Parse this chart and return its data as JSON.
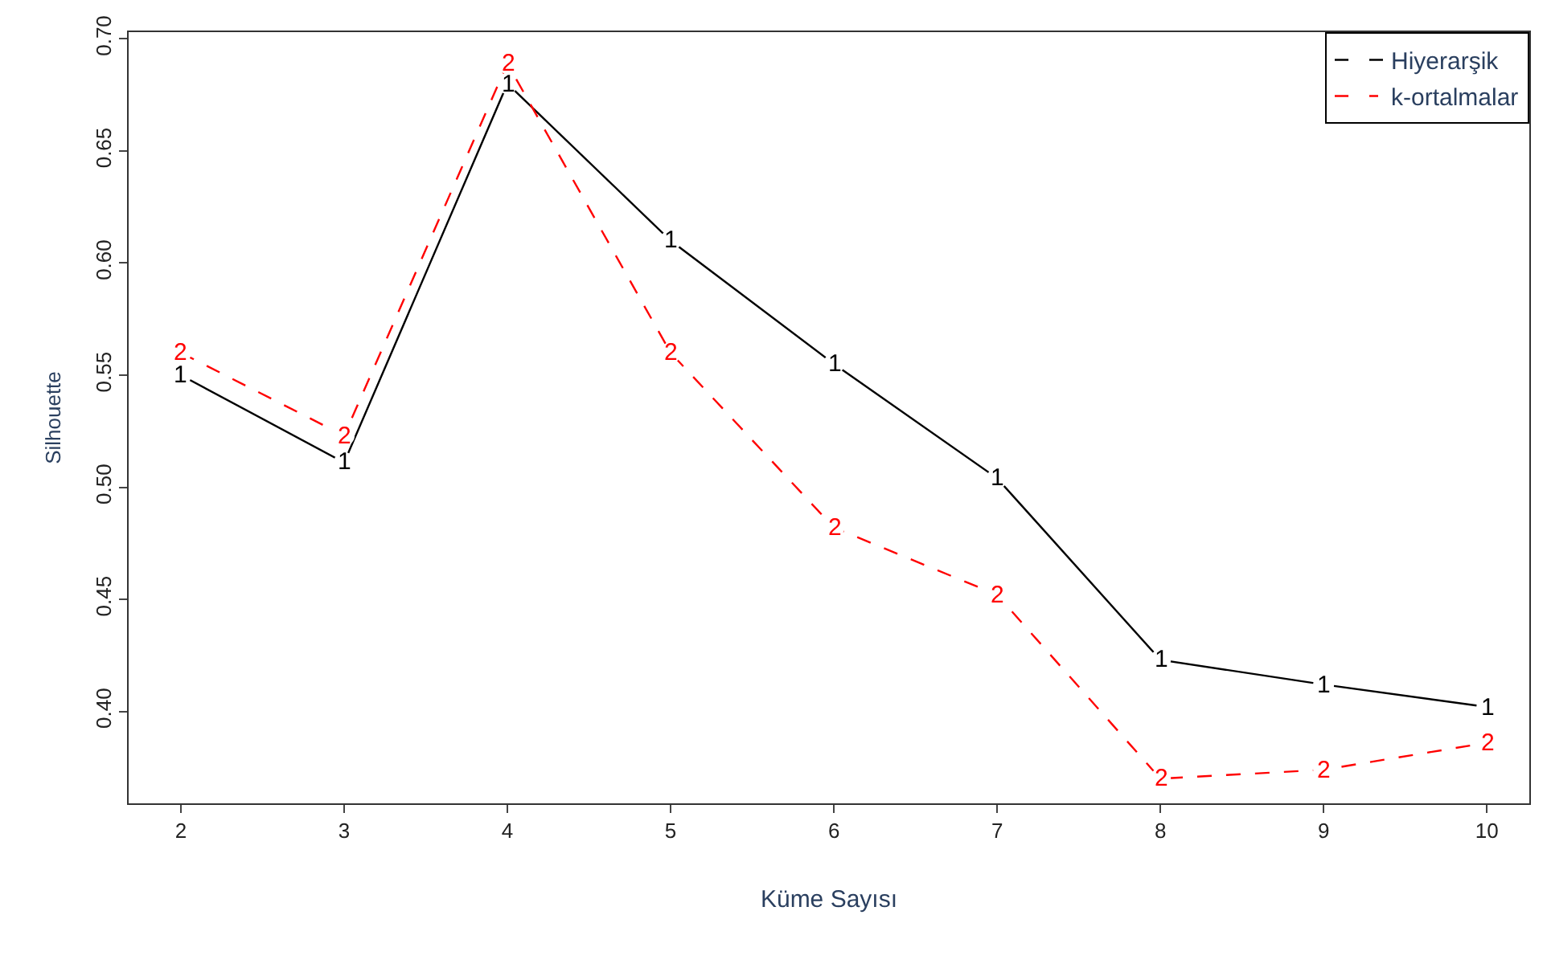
{
  "chart_data": {
    "type": "line",
    "xlabel": "Küme Sayısı",
    "ylabel": "Silhouette",
    "x": [
      2,
      3,
      4,
      5,
      6,
      7,
      8,
      9,
      10
    ],
    "series": [
      {
        "name": "Hiyerarşik",
        "color": "#000000",
        "line_style": "solid",
        "values": [
          0.55,
          0.511,
          0.68,
          0.61,
          0.555,
          0.504,
          0.423,
          0.412,
          0.402
        ]
      },
      {
        "name": "k-ortalmalar",
        "color": "#ff0000",
        "line_style": "dashed",
        "values": [
          0.56,
          0.523,
          0.689,
          0.56,
          0.482,
          0.452,
          0.37,
          0.374,
          0.386
        ]
      }
    ],
    "annotations": [
      {
        "text": "1",
        "x": 2,
        "y": 0.55
      },
      {
        "text": "1",
        "x": 3,
        "y": 0.511
      },
      {
        "text": "1",
        "x": 4,
        "y": 0.68
      },
      {
        "text": "1",
        "x": 5,
        "y": 0.61
      },
      {
        "text": "1",
        "x": 6,
        "y": 0.555
      },
      {
        "text": "1",
        "x": 7,
        "y": 0.504
      },
      {
        "text": "1",
        "x": 8,
        "y": 0.423
      },
      {
        "text": "1",
        "x": 9,
        "y": 0.412
      },
      {
        "text": "1",
        "x": 10,
        "y": 0.402
      },
      {
        "text": "2",
        "x": 2,
        "y": 0.56
      },
      {
        "text": "2",
        "x": 3,
        "y": 0.523
      },
      {
        "text": "2",
        "x": 4,
        "y": 0.689
      },
      {
        "text": "2",
        "x": 5,
        "y": 0.56
      },
      {
        "text": "2",
        "x": 6,
        "y": 0.482
      },
      {
        "text": "2",
        "x": 7,
        "y": 0.452
      },
      {
        "text": "2",
        "x": 8,
        "y": 0.37
      },
      {
        "text": "2",
        "x": 9,
        "y": 0.374
      },
      {
        "text": "2",
        "x": 10,
        "y": 0.386
      }
    ],
    "xlim": [
      1.68,
      10.26
    ],
    "ylim": [
      0.359,
      0.703
    ],
    "xticks": [
      2,
      3,
      4,
      5,
      6,
      7,
      8,
      9,
      10
    ],
    "yticks": [
      {
        "value": 0.4,
        "label": "0.40"
      },
      {
        "value": 0.45,
        "label": "0.45"
      },
      {
        "value": 0.5,
        "label": "0.50"
      },
      {
        "value": 0.55,
        "label": "0.55"
      },
      {
        "value": 0.6,
        "label": "0.60"
      },
      {
        "value": 0.65,
        "label": "0.65"
      },
      {
        "value": 0.7,
        "label": "0.70"
      }
    ],
    "marker": "circle",
    "grid": false,
    "legend": "top right"
  }
}
